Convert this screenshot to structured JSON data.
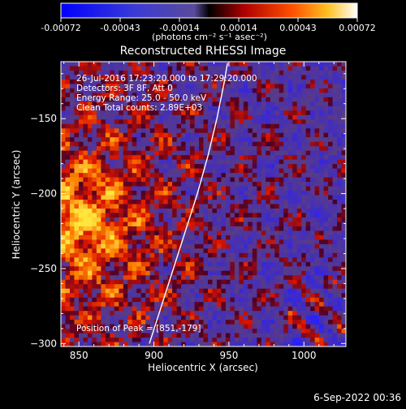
{
  "chart_data": {
    "type": "heatmap",
    "title": "Reconstructed RHESSI Image",
    "xlabel": "Heliocentric X (arcsec)",
    "ylabel": "Heliocentric Y (arcsec)",
    "xlim": [
      838,
      1028
    ],
    "ylim": [
      -302,
      -112
    ],
    "x_ticks": [
      850,
      900,
      950,
      1000
    ],
    "y_ticks": [
      -150,
      -200,
      -250,
      -300
    ],
    "colorbar": {
      "range": [
        -0.00072,
        0.00072
      ],
      "ticks": [
        "-0.00072",
        "-0.00043",
        "-0.00014",
        "0.00014",
        "0.00043",
        "0.00072"
      ],
      "units": "(photons cm⁻² s⁻¹ asec⁻²)"
    },
    "info": {
      "time": "26-Jul-2016 17:23:20.000 to 17:29:20.000",
      "detectors": "Detectors: 3F 8F, Att 0",
      "energy": "Energy Range: 25.0 - 50.0 keV",
      "method": "Clean     Total counts: 2.89E+03",
      "peak": "Position of Peak = [851,-179]"
    },
    "limb_line": [
      [
        897,
        -300
      ],
      [
        905,
        -275
      ],
      [
        913,
        -250
      ],
      [
        921,
        -225
      ],
      [
        929,
        -200
      ],
      [
        936,
        -175
      ],
      [
        942,
        -150
      ],
      [
        947,
        -125
      ],
      [
        949,
        -113
      ]
    ],
    "grid": {
      "nx": 64,
      "ny": 64,
      "seed": 7,
      "hot_center": [
        852,
        -220
      ],
      "peak": [
        851,
        -179
      ]
    },
    "timestamp": "6-Sep-2022 00:36"
  }
}
